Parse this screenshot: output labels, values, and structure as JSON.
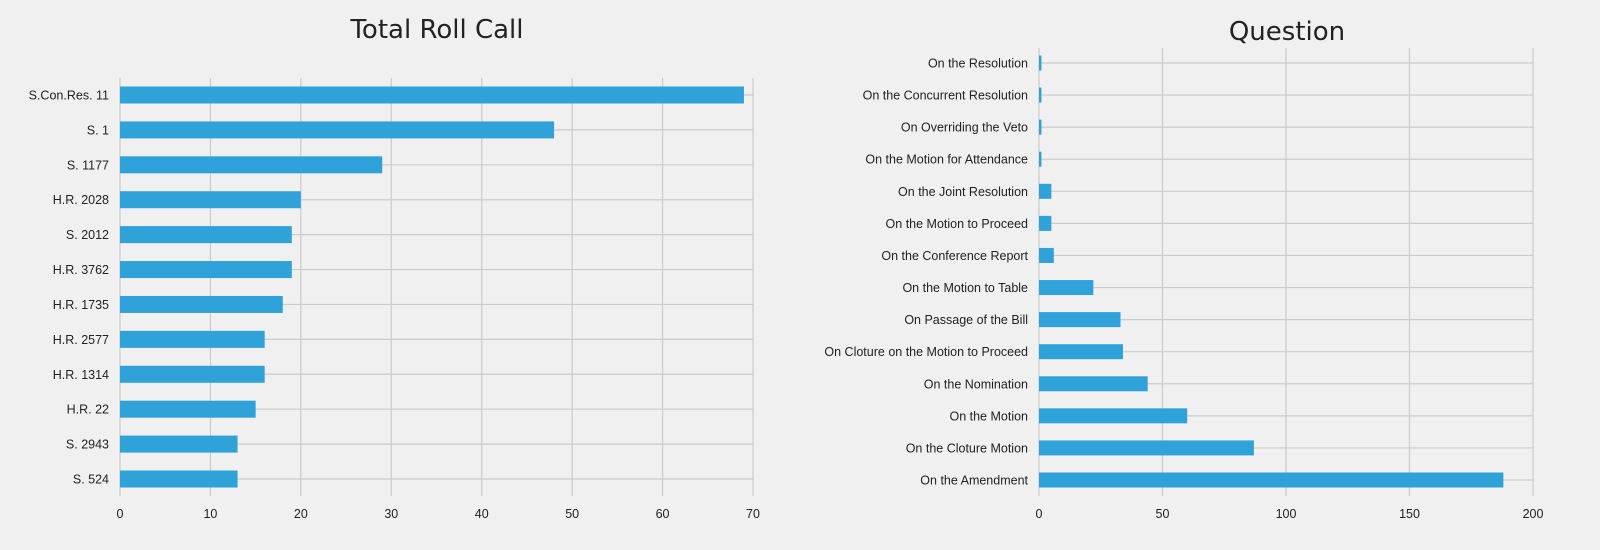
{
  "chart_data": [
    {
      "type": "bar",
      "orientation": "horizontal",
      "title": "Total Roll Call",
      "xlabel": "",
      "ylabel": "",
      "xlim": [
        0,
        70
      ],
      "xticks": [
        0,
        10,
        20,
        30,
        40,
        50,
        60,
        70
      ],
      "grid": true,
      "color": "#30a2da",
      "categories": [
        "S.Con.Res. 11",
        "S. 1",
        "S. 1177",
        "H.R. 2028",
        "S. 2012",
        "H.R. 3762",
        "H.R. 1735",
        "H.R. 2577",
        "H.R. 1314",
        "H.R. 22",
        "S. 2943",
        "S. 524"
      ],
      "values": [
        69,
        48,
        29,
        20,
        19,
        19,
        18,
        16,
        16,
        15,
        13,
        13
      ]
    },
    {
      "type": "bar",
      "orientation": "horizontal",
      "title": "Question",
      "xlabel": "",
      "ylabel": "",
      "xlim": [
        0,
        200
      ],
      "xticks": [
        0,
        50,
        100,
        150,
        200
      ],
      "grid": true,
      "color": "#30a2da",
      "categories": [
        "On the Resolution",
        "On the Concurrent Resolution",
        "On Overriding the Veto",
        "On the Motion for Attendance",
        "On the Joint Resolution",
        "On the Motion to Proceed",
        "On the Conference Report",
        "On the Motion to Table",
        "On Passage of the Bill",
        "On Cloture on the Motion to Proceed",
        "On the Nomination",
        "On the Motion",
        "On the Cloture Motion",
        "On the Amendment"
      ],
      "values": [
        1,
        1,
        1,
        1,
        5,
        5,
        6,
        22,
        33,
        34,
        44,
        60,
        87,
        188
      ]
    }
  ]
}
